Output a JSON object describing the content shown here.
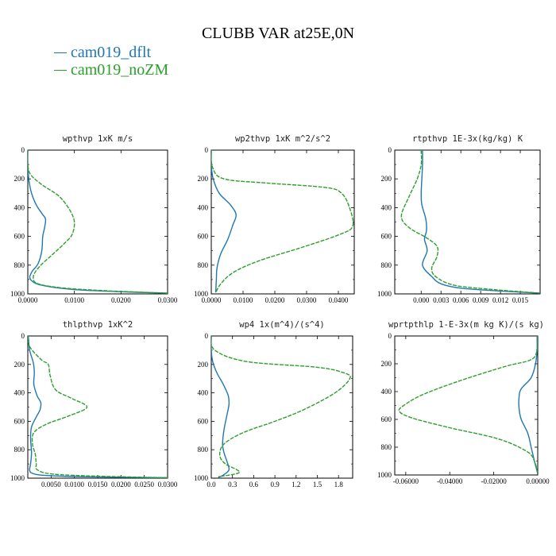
{
  "title": "CLUBB VAR at25E,0N",
  "legend": [
    {
      "label": "cam019_dflt",
      "color": "#1f77b4"
    },
    {
      "label": "cam019_noZM",
      "color": "#2ca02c"
    }
  ],
  "chart_data": [
    {
      "type": "line",
      "title": "wpthvp  1xK m/s",
      "xlim": [
        0,
        0.03
      ],
      "ylim": [
        1000,
        0
      ],
      "xticks": [
        0,
        0.01,
        0.02,
        0.03
      ],
      "xtick_labels": [
        "0.0000",
        "0.0100",
        "0.0200",
        "0.0300"
      ],
      "yticks": [
        0,
        200,
        400,
        600,
        800,
        1000
      ],
      "ytick_labels": [
        "0",
        "200",
        "400",
        "600",
        "800",
        "1000"
      ],
      "series": [
        {
          "name": "cam019_dflt",
          "x": [
            0.0,
            0.0,
            0.0002,
            0.0008,
            0.0018,
            0.003,
            0.0038,
            0.0036,
            0.0032,
            0.003,
            0.0022,
            0.0008,
            0.0006,
            0.003,
            0.01,
            0.02,
            0.03
          ],
          "y": [
            0,
            100,
            200,
            300,
            380,
            440,
            480,
            540,
            600,
            700,
            790,
            850,
            900,
            940,
            970,
            985,
            995
          ]
        },
        {
          "name": "cam019_noZM",
          "x": [
            0.0,
            0.0,
            0.0006,
            0.003,
            0.007,
            0.0098,
            0.0096,
            0.0078,
            0.0055,
            0.0025,
            0.0012,
            0.0022,
            0.008,
            0.018,
            0.03
          ],
          "y": [
            0,
            100,
            170,
            240,
            330,
            470,
            580,
            650,
            720,
            810,
            880,
            930,
            960,
            980,
            995
          ]
        }
      ]
    },
    {
      "type": "line",
      "title": "wp2thvp  1xK m^2/s^2",
      "xlim": [
        0,
        0.045
      ],
      "ylim": [
        1000,
        0
      ],
      "xticks": [
        0,
        0.01,
        0.02,
        0.03,
        0.04
      ],
      "xtick_labels": [
        "0.0000",
        "0.0100",
        "0.0200",
        "0.0300",
        "0.0400"
      ],
      "yticks": [
        0,
        200,
        400,
        600,
        800,
        1000
      ],
      "ytick_labels": [
        "0",
        "200",
        "400",
        "600",
        "800",
        "1000"
      ],
      "series": [
        {
          "name": "cam019_dflt",
          "x": [
            0.0,
            0.0,
            0.0006,
            0.0025,
            0.006,
            0.0078,
            0.0068,
            0.0052,
            0.003,
            0.0018,
            0.0016,
            0.0014
          ],
          "y": [
            0,
            100,
            200,
            300,
            380,
            450,
            520,
            620,
            720,
            820,
            900,
            990
          ]
        },
        {
          "name": "cam019_noZM",
          "x": [
            0.0,
            0.0004,
            0.004,
            0.018,
            0.036,
            0.041,
            0.0435,
            0.0445,
            0.04,
            0.028,
            0.015,
            0.007,
            0.003,
            0.0014
          ],
          "y": [
            0,
            120,
            200,
            230,
            260,
            300,
            400,
            530,
            590,
            680,
            770,
            850,
            930,
            990
          ]
        }
      ]
    },
    {
      "type": "line",
      "title": "rtpthvp  1E-3x(kg/kg) K",
      "xlim": [
        -0.004,
        0.018
      ],
      "ylim": [
        1000,
        0
      ],
      "xticks": [
        0,
        0.003,
        0.006,
        0.009,
        0.012,
        0.015
      ],
      "xtick_labels": [
        "0.000",
        "0.003",
        "0.006",
        "0.009",
        "0.012",
        "0.015"
      ],
      "yticks": [
        0,
        200,
        400,
        600,
        800,
        1000
      ],
      "ytick_labels": [
        "0",
        "200",
        "400",
        "600",
        "800",
        "1000"
      ],
      "series": [
        {
          "name": "cam019_dflt",
          "x": [
            0.0002,
            0.0002,
            0.0001,
            0.0,
            0.0001,
            0.0007,
            0.0008,
            0.0005,
            0.0009,
            0.0002,
            0.0016,
            0.003,
            0.006,
            0.012,
            0.018
          ],
          "y": [
            0,
            100,
            200,
            300,
            380,
            480,
            560,
            620,
            700,
            800,
            880,
            930,
            960,
            980,
            995
          ]
        },
        {
          "name": "cam019_noZM",
          "x": [
            0.0,
            0.0,
            -0.0006,
            -0.0018,
            -0.003,
            -0.0018,
            0.0008,
            0.0024,
            0.0024,
            0.0016,
            0.0022,
            0.005,
            0.011,
            0.018
          ],
          "y": [
            0,
            100,
            200,
            320,
            460,
            540,
            610,
            670,
            740,
            820,
            880,
            940,
            970,
            995
          ]
        }
      ]
    },
    {
      "type": "line",
      "title": "thlpthvp  1xK^2",
      "xlim": [
        0,
        0.03
      ],
      "ylim": [
        1000,
        0
      ],
      "xticks": [
        0.005,
        0.01,
        0.015,
        0.02,
        0.025,
        0.03
      ],
      "xtick_labels": [
        "0.0050",
        "0.0100",
        "0.0150",
        "0.0200",
        "0.0250",
        "0.0300"
      ],
      "yticks": [
        0,
        200,
        400,
        600,
        800,
        1000
      ],
      "ytick_labels": [
        "0",
        "200",
        "400",
        "600",
        "800",
        "1000"
      ],
      "series": [
        {
          "name": "cam019_dflt",
          "x": [
            0.0001,
            0.0004,
            0.0012,
            0.0014,
            0.0013,
            0.002,
            0.0028,
            0.0026,
            0.0018,
            0.0008,
            0.0006,
            0.0008,
            0.0006,
            0.0004,
            0.0009,
            0.0035,
            0.012,
            0.03
          ],
          "y": [
            0,
            100,
            190,
            260,
            340,
            420,
            470,
            520,
            570,
            640,
            720,
            820,
            900,
            940,
            965,
            980,
            990,
            997
          ]
        },
        {
          "name": "cam019_noZM",
          "x": [
            0.0,
            0.0005,
            0.003,
            0.0044,
            0.0048,
            0.006,
            0.0095,
            0.0127,
            0.009,
            0.004,
            0.0013,
            0.001,
            0.0016,
            0.0018,
            0.002,
            0.005,
            0.014,
            0.03
          ],
          "y": [
            0,
            80,
            170,
            200,
            280,
            380,
            440,
            500,
            560,
            620,
            680,
            760,
            830,
            900,
            940,
            970,
            985,
            997
          ]
        }
      ]
    },
    {
      "type": "line",
      "title": "wp4  1x(m^4)/(s^4)",
      "xlim": [
        0,
        2.0
      ],
      "ylim": [
        1000,
        0
      ],
      "xticks": [
        0,
        0.3,
        0.6,
        0.9,
        1.2,
        1.5,
        1.8
      ],
      "xtick_labels": [
        "0.0",
        "0.3",
        "0.6",
        "0.9",
        "1.2",
        "1.5",
        "1.8"
      ],
      "yticks": [
        0,
        200,
        400,
        600,
        800,
        1000
      ],
      "ytick_labels": [
        "0",
        "200",
        "400",
        "600",
        "800",
        "1000"
      ],
      "series": [
        {
          "name": "cam019_dflt",
          "x": [
            0.0,
            0.0,
            0.02,
            0.08,
            0.17,
            0.24,
            0.25,
            0.22,
            0.18,
            0.16,
            0.18,
            0.22,
            0.25,
            0.18,
            0.1
          ],
          "y": [
            0,
            100,
            180,
            260,
            340,
            420,
            480,
            560,
            660,
            760,
            820,
            880,
            940,
            975,
            995
          ]
        },
        {
          "name": "cam019_noZM",
          "x": [
            0.0,
            0.05,
            0.5,
            1.5,
            1.88,
            1.96,
            1.75,
            1.3,
            0.9,
            0.45,
            0.18,
            0.12,
            0.2,
            0.36,
            0.38,
            0.1
          ],
          "y": [
            0,
            100,
            180,
            220,
            260,
            300,
            400,
            520,
            600,
            680,
            760,
            840,
            900,
            940,
            965,
            990
          ]
        }
      ]
    },
    {
      "type": "line",
      "title": "wprtpthlp  1-E-3x(m kg K)/(s kg)",
      "xlim": [
        -0.065,
        0.0
      ],
      "ylim": [
        1000,
        0
      ],
      "xticks": [
        -0.06,
        -0.04,
        -0.02,
        0.0
      ],
      "xtick_labels": [
        "-0.06000",
        "-0.04000",
        "-0.02000",
        "0.00000"
      ],
      "yticks": [
        0,
        200,
        400,
        600,
        800,
        1000
      ],
      "ytick_labels": [
        "0",
        "200",
        "400",
        "600",
        "800",
        "1000"
      ],
      "series": [
        {
          "name": "cam019_dflt",
          "x": [
            -0.0003,
            -0.0003,
            -0.001,
            -0.003,
            -0.0075,
            -0.0085,
            -0.0085,
            -0.0075,
            -0.0045,
            -0.003,
            -0.0015,
            0.0
          ],
          "y": [
            0,
            100,
            200,
            300,
            380,
            440,
            520,
            600,
            700,
            800,
            900,
            990
          ]
        },
        {
          "name": "cam019_noZM",
          "x": [
            0.0,
            -0.0003,
            -0.003,
            -0.015,
            -0.035,
            -0.052,
            -0.06,
            -0.063,
            -0.057,
            -0.04,
            -0.018,
            -0.005,
            -0.0015,
            0.0
          ],
          "y": [
            0,
            100,
            170,
            220,
            320,
            420,
            490,
            540,
            590,
            660,
            740,
            830,
            900,
            990
          ]
        }
      ]
    }
  ]
}
